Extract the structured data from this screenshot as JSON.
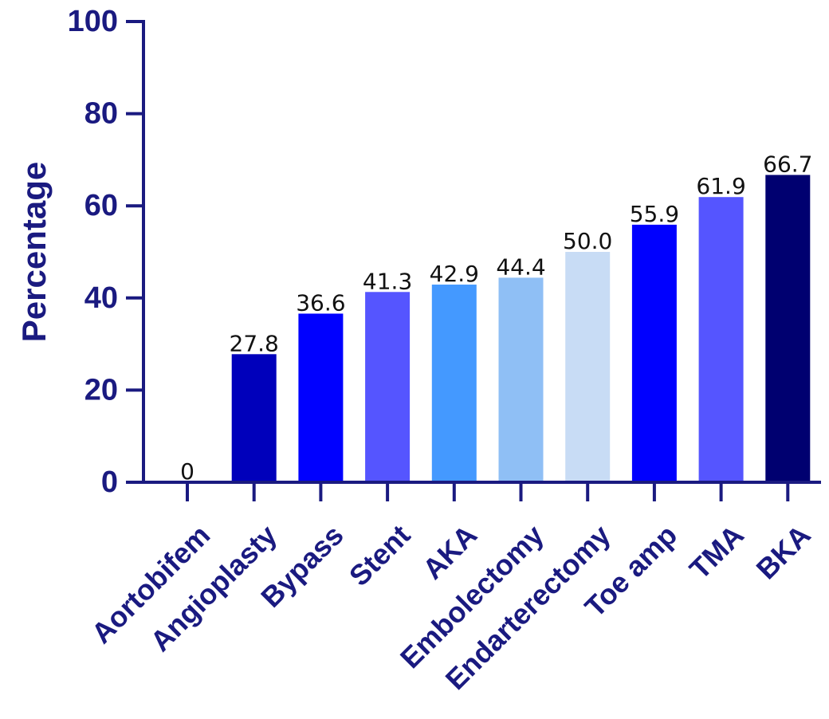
{
  "chart_data": {
    "type": "bar",
    "title": "",
    "xlabel": "",
    "ylabel": "Percentage",
    "ylim": [
      0,
      100
    ],
    "yticks": [
      0,
      20,
      40,
      60,
      80,
      100
    ],
    "grid": false,
    "categories": [
      "Aortobifem",
      "Angioplasty",
      "Bypass",
      "Stent",
      "AKA",
      "Embolectomy",
      "Endarterectomy",
      "Toe amp",
      "TMA",
      "BKA"
    ],
    "values": [
      0,
      27.8,
      36.6,
      41.3,
      42.9,
      44.4,
      50.0,
      55.9,
      61.9,
      66.7
    ],
    "data_labels": [
      "0",
      "27.8",
      "36.6",
      "41.3",
      "42.9",
      "44.4",
      "50.0",
      "55.9",
      "61.9",
      "66.7"
    ],
    "colors": [
      "#00008b",
      "#0000bb",
      "#0000ff",
      "#5555ff",
      "#4499ff",
      "#8fbff5",
      "#c8dcf5",
      "#0000ff",
      "#5555ff",
      "#000070"
    ]
  }
}
